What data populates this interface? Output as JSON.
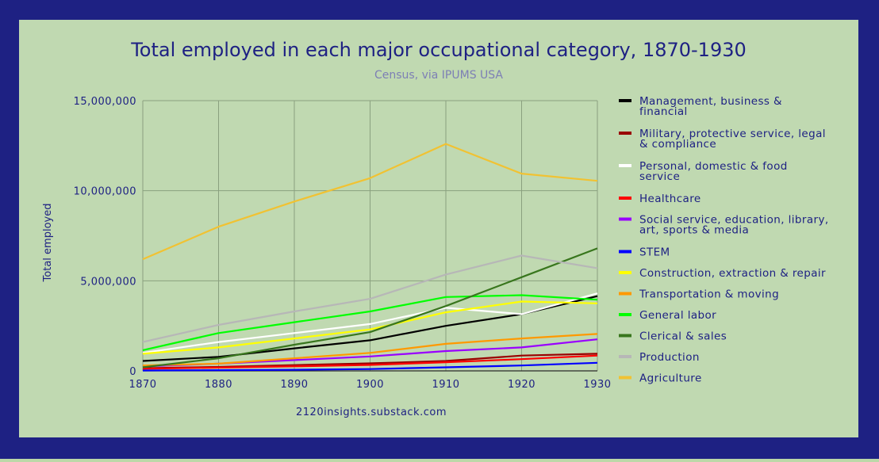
{
  "chart_data": {
    "type": "line",
    "title": "Total employed in each major occupational category, 1870-1930",
    "subtitle": "Census, via IPUMS USA",
    "xlabel": "",
    "ylabel": "Total employed",
    "source": "2120insights.substack.com",
    "x": [
      1870,
      1880,
      1890,
      1900,
      1910,
      1920,
      1930
    ],
    "x_tick_labels": [
      "1870",
      "1880",
      "1890",
      "1900",
      "1910",
      "1920",
      "1930"
    ],
    "y_ticks": [
      0,
      5000000,
      10000000,
      15000000
    ],
    "y_tick_labels": [
      "0",
      "5,000,000",
      "10,000,000",
      "15,000,000"
    ],
    "ylim": [
      0,
      15000000
    ],
    "xlim": [
      1870,
      1930
    ],
    "grid": true,
    "legend_position": "right",
    "series": [
      {
        "name": "Management, business & financial",
        "legend_lines": [
          "Management, business &",
          "financial"
        ],
        "color": "#000000",
        "values": [
          550000,
          780000,
          1250000,
          1700000,
          2500000,
          3150000,
          4150000
        ]
      },
      {
        "name": "Military, protective service, legal & compliance",
        "legend_lines": [
          "Military, protective service, legal",
          "& compliance"
        ],
        "color": "#990000",
        "values": [
          150000,
          220000,
          320000,
          420000,
          550000,
          850000,
          950000
        ]
      },
      {
        "name": "Personal, domestic & food service",
        "legend_lines": [
          "Personal, domestic & food",
          "service"
        ],
        "color": "#ffffff",
        "values": [
          1000000,
          1600000,
          2100000,
          2600000,
          3500000,
          3150000,
          4300000
        ]
      },
      {
        "name": "Healthcare",
        "legend_lines": [
          "Healthcare"
        ],
        "color": "#ff0000",
        "values": [
          120000,
          180000,
          250000,
          330000,
          480000,
          650000,
          850000
        ]
      },
      {
        "name": "Social service, education, library, art, sports & media",
        "legend_lines": [
          "Social service, education, library,",
          "art, sports & media"
        ],
        "color": "#9900ff",
        "values": [
          250000,
          400000,
          600000,
          800000,
          1100000,
          1300000,
          1750000
        ]
      },
      {
        "name": "STEM",
        "legend_lines": [
          "STEM"
        ],
        "color": "#0000ff",
        "values": [
          20000,
          40000,
          60000,
          100000,
          200000,
          300000,
          450000
        ]
      },
      {
        "name": "Construction, extraction & repair",
        "legend_lines": [
          "Construction, extraction & repair"
        ],
        "color": "#ffff00",
        "values": [
          950000,
          1300000,
          1800000,
          2300000,
          3250000,
          3850000,
          3750000
        ]
      },
      {
        "name": "Transportation & moving",
        "legend_lines": [
          "Transportation & moving"
        ],
        "color": "#ff9900",
        "values": [
          300000,
          400000,
          700000,
          1000000,
          1500000,
          1800000,
          2050000
        ]
      },
      {
        "name": "General labor",
        "legend_lines": [
          "General labor"
        ],
        "color": "#00ff00",
        "values": [
          1150000,
          2100000,
          2700000,
          3300000,
          4100000,
          4200000,
          3950000
        ]
      },
      {
        "name": "Clerical & sales",
        "legend_lines": [
          "Clerical & sales"
        ],
        "color": "#38761d",
        "values": [
          200000,
          700000,
          1450000,
          2150000,
          3600000,
          5200000,
          6800000
        ]
      },
      {
        "name": "Production",
        "legend_lines": [
          "Production"
        ],
        "color": "#b7b7b7",
        "values": [
          1600000,
          2550000,
          3300000,
          4000000,
          5350000,
          6400000,
          5700000
        ]
      },
      {
        "name": "Agriculture",
        "legend_lines": [
          "Agriculture"
        ],
        "color": "#f1c232",
        "values": [
          6200000,
          8000000,
          9400000,
          10700000,
          12600000,
          10950000,
          10550000
        ]
      }
    ]
  }
}
